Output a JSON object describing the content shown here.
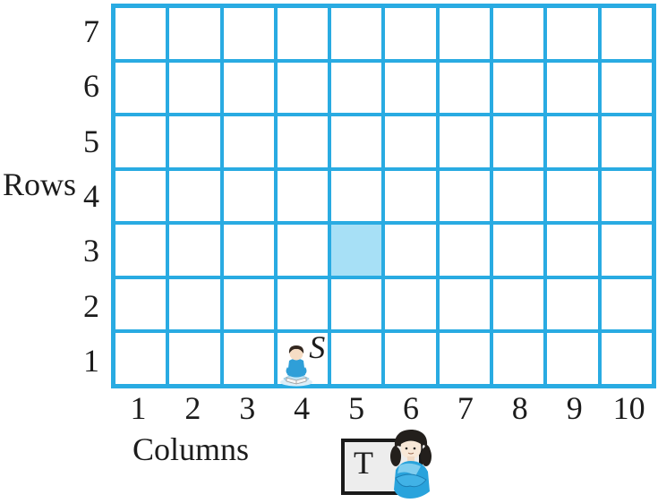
{
  "figure": {
    "row_axis_label": "Rows",
    "column_axis_label": "Columns",
    "grid_rows": 7,
    "grid_columns": 10,
    "row_labels": [
      "7",
      "6",
      "5",
      "4",
      "3",
      "2",
      "1"
    ],
    "column_labels": [
      "1",
      "2",
      "3",
      "4",
      "5",
      "6",
      "7",
      "8",
      "9",
      "10"
    ],
    "shaded_cell": {
      "column": 5,
      "row": 3
    },
    "student_marker": {
      "label": "S",
      "column": 4,
      "row": 1,
      "icon": "child-reading-icon"
    },
    "teacher_marker": {
      "label": "T",
      "icon": "teacher-icon"
    }
  },
  "colors": {
    "grid_line": "#29abe2",
    "cell_fill": "#ffffff",
    "shaded_cell_fill": "#a7e0f6",
    "text": "#1c1c1c",
    "teacher_box_fill": "#ededed",
    "teacher_box_border": "#1a1a1a"
  }
}
